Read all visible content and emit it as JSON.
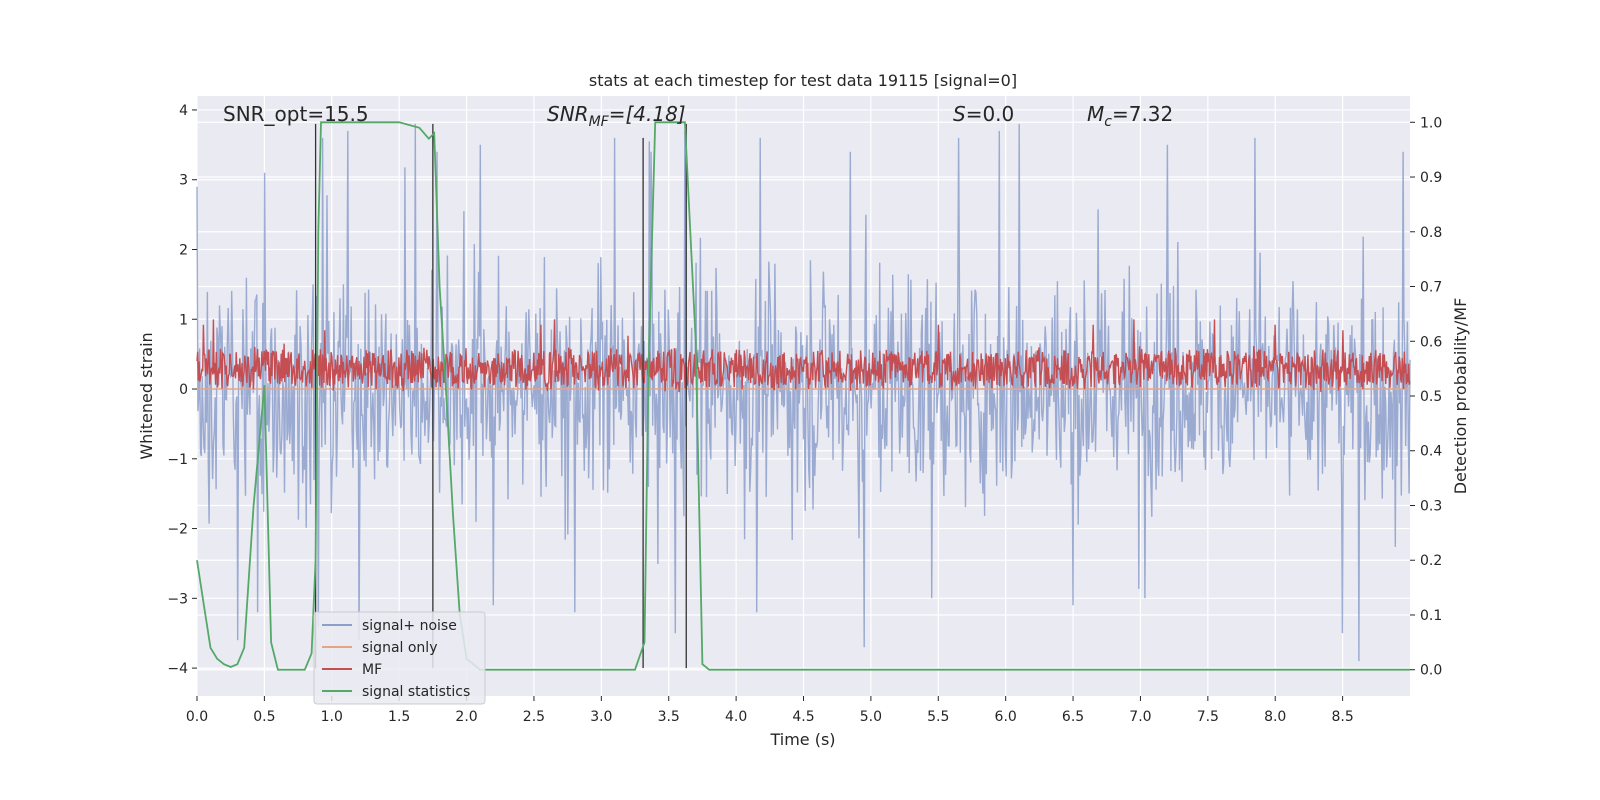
{
  "chart_data": {
    "type": "line",
    "title": "stats at each timestep for test data 19115 [signal=0]",
    "xlabel": "Time (s)",
    "ylabel": "Whitened strain",
    "y2label": "Detection probability/MF",
    "xlim": [
      0,
      9.0
    ],
    "ylim": [
      -4.4,
      4.2
    ],
    "y2lim": [
      -0.048,
      1.048
    ],
    "xticks": [
      "0.0",
      "0.5",
      "1.0",
      "1.5",
      "2.0",
      "2.5",
      "3.0",
      "3.5",
      "4.0",
      "4.5",
      "5.0",
      "5.5",
      "6.0",
      "6.5",
      "7.0",
      "7.5",
      "8.0",
      "8.5"
    ],
    "yticks": [
      "−4",
      "−3",
      "−2",
      "−1",
      "0",
      "1",
      "2",
      "3",
      "4"
    ],
    "y2ticks": [
      "0.0",
      "0.1",
      "0.2",
      "0.3",
      "0.4",
      "0.5",
      "0.6",
      "0.7",
      "0.8",
      "0.9",
      "1.0"
    ],
    "grid": true,
    "legend_position": "lower-left",
    "annotations": {
      "snr_opt": "SNR_opt=15.5",
      "snr_mf_base": "SNR",
      "snr_mf_sub": "MF",
      "snr_mf_rest": "=[4.18]",
      "s_label_base": "S",
      "s_label_rest": "=0.0",
      "mc_label_base": "M",
      "mc_label_sub": "c",
      "mc_label_rest": "=7.32"
    },
    "series": [
      {
        "name": "signal+ noise",
        "color": "#8c9fcb",
        "axis": "left",
        "style": "dense noise, envelope mostly within ±2.5, peaks up to ±3.8",
        "peak_x": [
          0.0,
          0.5,
          0.93,
          1.12,
          1.62,
          1.78,
          2.1,
          3.1,
          3.37,
          3.62,
          4.18,
          4.85,
          5.65,
          5.95,
          6.1,
          7.2,
          7.85,
          8.5,
          8.95
        ],
        "peak_y": [
          2.9,
          3.1,
          3.6,
          3.7,
          3.8,
          3.4,
          3.5,
          3.6,
          3.4,
          3.7,
          3.6,
          3.4,
          3.6,
          3.7,
          3.8,
          3.5,
          3.6,
          3.3,
          3.4
        ],
        "trough_x": [
          0.3,
          0.45,
          0.9,
          1.2,
          2.2,
          2.8,
          3.55,
          4.15,
          4.95,
          5.45,
          6.5,
          8.5,
          8.62
        ],
        "trough_y": [
          -3.6,
          -3.2,
          -3.4,
          -3.6,
          -3.1,
          -3.2,
          -3.5,
          -3.2,
          -3.7,
          -3.0,
          -3.1,
          -3.5,
          -3.9
        ]
      },
      {
        "name": "signal only",
        "color": "#e8a383",
        "axis": "left",
        "x": [
          0.0,
          9.0
        ],
        "y": [
          0.0,
          0.0
        ]
      },
      {
        "name": "MF",
        "color": "#c44e52",
        "axis": "right",
        "style": "noisy band around 0.55 (range 0.50–0.62)",
        "baseline": 0.55,
        "peak_x": [
          0.05,
          0.12,
          0.95,
          2.55,
          2.65,
          3.2,
          5.5,
          6.65,
          6.95,
          7.55,
          8.0,
          8.5
        ],
        "peak_y": [
          0.63,
          0.64,
          0.62,
          0.63,
          0.64,
          0.61,
          0.63,
          0.63,
          0.64,
          0.64,
          0.63,
          0.62
        ]
      },
      {
        "name": "signal statistics",
        "color": "#55a868",
        "axis": "right",
        "x": [
          0.0,
          0.05,
          0.1,
          0.15,
          0.2,
          0.25,
          0.3,
          0.35,
          0.42,
          0.5,
          0.55,
          0.6,
          0.8,
          0.85,
          0.88,
          0.9,
          0.92,
          0.95,
          1.0,
          1.2,
          1.5,
          1.65,
          1.72,
          1.76,
          1.8,
          1.85,
          1.9,
          1.95,
          2.0,
          2.05,
          2.1,
          2.3,
          3.25,
          3.32,
          3.35,
          3.4,
          3.62,
          3.7,
          3.75,
          3.8,
          9.0
        ],
        "y": [
          0.2,
          0.12,
          0.04,
          0.02,
          0.01,
          0.005,
          0.01,
          0.04,
          0.3,
          0.52,
          0.05,
          0.0,
          0.0,
          0.03,
          0.2,
          0.8,
          1.0,
          1.0,
          1.0,
          1.0,
          1.0,
          0.99,
          0.97,
          0.98,
          0.7,
          0.5,
          0.28,
          0.1,
          0.02,
          0.01,
          0.0,
          0.0,
          0.0,
          0.05,
          0.55,
          1.0,
          1.0,
          0.6,
          0.01,
          0.0,
          0.0
        ]
      }
    ],
    "vlines": {
      "color": "#333333",
      "x": [
        0.88,
        1.75,
        3.31,
        3.63
      ],
      "y": [
        3.8,
        3.8,
        3.6,
        3.8
      ]
    }
  }
}
